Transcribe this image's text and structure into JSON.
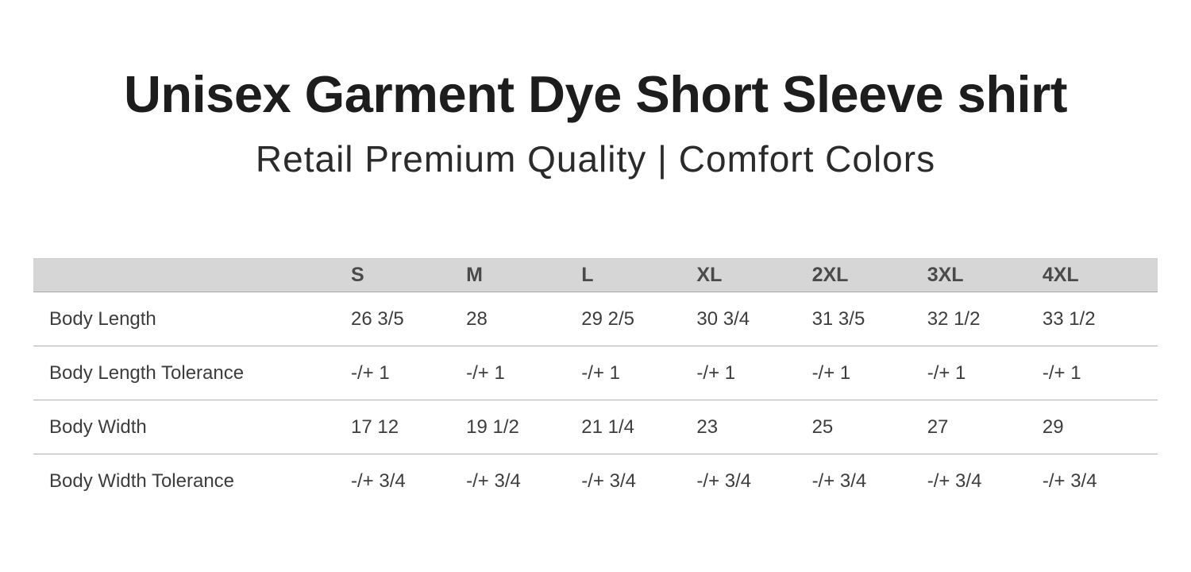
{
  "page": {
    "title": "Unisex Garment Dye Short Sleeve shirt",
    "subtitle": "Retail Premium Quality | Comfort Colors"
  },
  "chart_data": {
    "type": "table",
    "title": "Unisex Garment Dye Short Sleeve shirt",
    "subtitle": "Retail Premium Quality | Comfort Colors",
    "columns": [
      "S",
      "M",
      "L",
      "XL",
      "2XL",
      "3XL",
      "4XL"
    ],
    "rows": [
      {
        "label": "Body Length",
        "values": [
          "26 3/5",
          "28",
          "29 2/5",
          "30 3/4",
          "31 3/5",
          "32 1/2",
          "33 1/2"
        ]
      },
      {
        "label": "Body Length Tolerance",
        "values": [
          "-/+ 1",
          "-/+ 1",
          "-/+ 1",
          "-/+ 1",
          "-/+ 1",
          "-/+ 1",
          "-/+ 1"
        ]
      },
      {
        "label": "Body Width",
        "values": [
          "17 12",
          "19 1/2",
          "21 1/4",
          "23",
          "25",
          "27",
          "29"
        ]
      },
      {
        "label": "Body Width Tolerance",
        "values": [
          "-/+ 3/4",
          "-/+ 3/4",
          "-/+ 3/4",
          "-/+ 3/4",
          "-/+ 3/4",
          "-/+ 3/4",
          "-/+ 3/4"
        ]
      }
    ],
    "layout": {
      "grid": "horizontal-rules-only",
      "header_row_shaded": true,
      "units": "inches"
    }
  },
  "colors": {
    "background": "#ffffff",
    "title_text": "#1d1d1d",
    "subtitle_text": "#2b2b2b",
    "header_bg": "#d6d6d6",
    "header_text": "#4a4a4a",
    "body_text": "#3d3d3d",
    "divider": "#b0b0b0"
  }
}
